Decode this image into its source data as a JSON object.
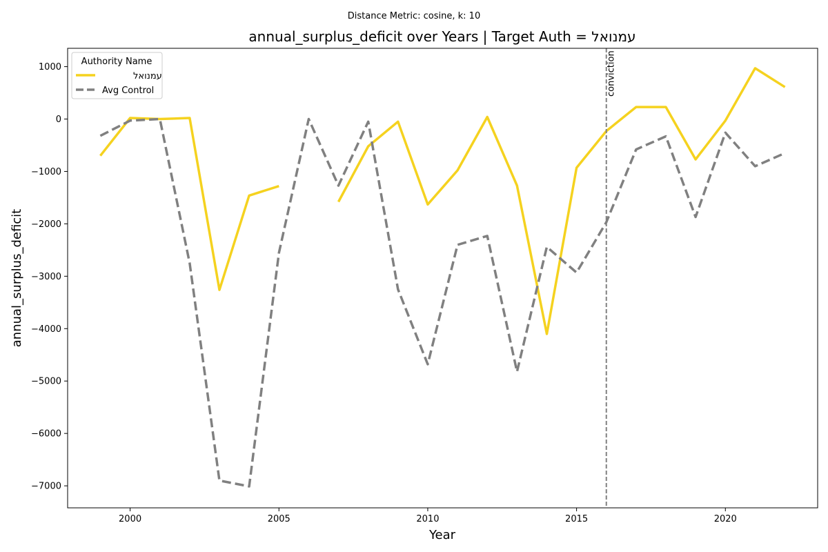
{
  "chart_data": {
    "type": "line",
    "suptitle": "Distance Metric: cosine, k: 10",
    "title": "annual_surplus_deficit over Years | Target Auth = עמנואל",
    "xlabel": "Year",
    "ylabel": "annual_surplus_deficit",
    "xlim": [
      1997.9,
      2023.1
    ],
    "ylim": [
      -7420,
      1350
    ],
    "xticks": [
      2000,
      2005,
      2010,
      2015,
      2020
    ],
    "yticks": [
      -7000,
      -6000,
      -5000,
      -4000,
      -3000,
      -2000,
      -1000,
      0,
      1000
    ],
    "grid": false,
    "legend": {
      "title": "Authority Name",
      "placement": "upper-left"
    },
    "series": [
      {
        "name": "עמנואל",
        "color": "#F5D21F",
        "style": "solid",
        "x": [
          1999,
          2000,
          2001,
          2002,
          2003,
          2004,
          2005,
          2006,
          2007,
          2008,
          2009,
          2010,
          2011,
          2012,
          2013,
          2014,
          2015,
          2016,
          2017,
          2018,
          2019,
          2020,
          2021,
          2022
        ],
        "values": [
          -700,
          20,
          0,
          20,
          -3260,
          -1460,
          -1280,
          null,
          -1580,
          -520,
          -50,
          -1630,
          -980,
          40,
          -1270,
          -4100,
          -930,
          -230,
          230,
          230,
          -770,
          -30,
          970,
          610
        ]
      },
      {
        "name": "Avg Control",
        "color": "#808080",
        "style": "dashed",
        "x": [
          1999,
          2000,
          2001,
          2002,
          2003,
          2004,
          2005,
          2006,
          2007,
          2008,
          2009,
          2010,
          2011,
          2012,
          2013,
          2014,
          2015,
          2016,
          2017,
          2018,
          2019,
          2020,
          2021,
          2022
        ],
        "values": [
          -320,
          -30,
          0,
          -2750,
          -6900,
          -7010,
          -2550,
          0,
          -1270,
          -50,
          -3250,
          -4680,
          -2400,
          -2230,
          -4820,
          -2440,
          -2930,
          -1970,
          -580,
          -330,
          -1870,
          -260,
          -900,
          -650
        ]
      }
    ],
    "annotations": [
      {
        "type": "vline",
        "x": 2016,
        "label": "conviction",
        "color": "#808080"
      }
    ]
  }
}
